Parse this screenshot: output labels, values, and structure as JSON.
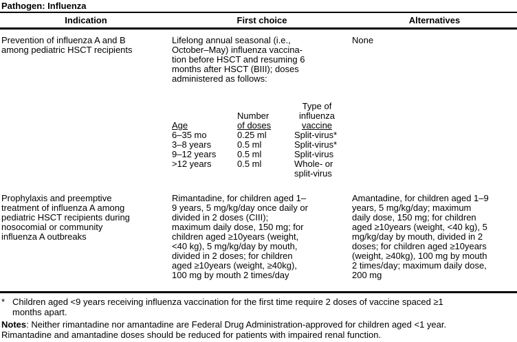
{
  "title": "Pathogen: Influenza",
  "table": {
    "headers": {
      "indication": "Indication",
      "first_choice": "First choice",
      "alternatives": "Alternatives"
    },
    "rows": [
      {
        "indication": "Prevention of influenza A and B\namong pediatric HSCT recipients",
        "first_choice": "Lifelong annual seasonal (i.e.,\nOctober–May) influenza vaccina-\ntion before HSCT and resuming 6\nmonths after HSCT (BIII); doses\nadministered as follows:",
        "alternatives": "None"
      },
      {
        "indication": "Prophylaxis and preemptive\ntreatment of influenza A among\npediatric HSCT recipients during\nnosocomial or community\ninfluenza A outbreaks",
        "first_choice": "Rimantadine, for children aged 1–\n9 years, 5 mg/kg/day once daily or\ndivided in 2 doses (CIII);\nmaximum daily dose, 150 mg; for\nchildren aged ≥10years (weight,\n<40 kg), 5 mg/kg/day by mouth,\ndivided in 2 doses; for children\naged ≥10years (weight, ≥40kg),\n100 mg by mouth 2 times/day",
        "alternatives": "Amantadine, for children aged 1–9\nyears, 5 mg/kg/day; maximum\ndaily dose, 150 mg; for children\naged ≥10years (weight, <40 kg), 5\nmg/kg/day by mouth, divided in 2\ndoses; for children aged ≥10years\n(weight, ≥40kg), 100 mg by mouth\n2 times/day; maximum daily dose,\n200 mg"
      }
    ]
  },
  "dose_subtable": {
    "col1_header": "Age",
    "col2_header_line1": "Number",
    "col2_header_line2": "of doses",
    "col3_header_line1": "Type of",
    "col3_header_line2": "influenza",
    "col3_header_line3": "vaccine",
    "rows": [
      {
        "age": "6–35 mo",
        "doses": "0.25 ml",
        "type": "Split-virus*"
      },
      {
        "age": "3–8 years",
        "doses": "0.5 ml",
        "type": "Split-virus*"
      },
      {
        "age": "9–12 years",
        "doses": "0.5 ml",
        "type": "Split-virus"
      },
      {
        "age": ">12 years",
        "doses": "0.5 ml",
        "type": "Whole- or\nsplit-virus"
      }
    ]
  },
  "footnotes": {
    "star_marker": "*",
    "star_text": "Children aged <9 years receiving influenza vaccination for the first time require 2 doses of vaccine spaced ≥1\nmonths apart.",
    "notes_label": "Notes",
    "notes_text": ": Neither rimantadine nor amantadine are Federal Drug Administration-approved for children aged <1 year.\nRimantadine and amantadine doses should be reduced for patients with impaired renal function."
  }
}
